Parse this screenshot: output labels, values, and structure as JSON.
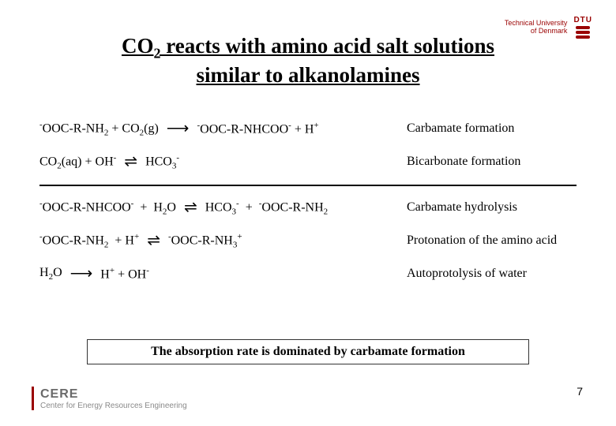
{
  "header": {
    "uni_line1": "Technical University",
    "uni_line2": "of Denmark",
    "dtu": "DTU"
  },
  "title": {
    "line1_pre": "CO",
    "line1_sub": "2",
    "line1_post": " reacts with amino acid salt solutions",
    "line2": "similar to alkanolamines"
  },
  "reactions": [
    {
      "lhs": "<sup>-</sup>OOC-R-NH<sub>2</sub> + CO<sub>2</sub>(g)",
      "arrow": "⟶",
      "rhs": "<sup>-</sup>OOC-R-NHCOO<sup>-</sup> + H<sup>+</sup>",
      "label": "Carbamate formation"
    },
    {
      "lhs": "CO<sub>2</sub>(aq) + OH<sup>-</sup>",
      "arrow": "⇌",
      "rhs": "HCO<sub>3</sub><sup>-</sup>",
      "label": "Bicarbonate formation"
    }
  ],
  "reactions2": [
    {
      "lhs": "<sup>-</sup>OOC-R-NHCOO<sup>-</sup> &nbsp;+&nbsp; H<sub>2</sub>O",
      "arrow": "⇌",
      "rhs": "HCO<sub>3</sub><sup>-</sup> &nbsp;+&nbsp; <sup>-</sup>OOC-R-NH<sub>2</sub>",
      "label": "Carbamate hydrolysis"
    },
    {
      "lhs": "<sup>-</sup>OOC-R-NH<sub>2</sub> &nbsp;+ H<sup>+</sup>",
      "arrow": "⇌",
      "rhs": "<sup>-</sup>OOC-R-NH<sub>3</sub><sup>+</sup>",
      "label": "Protonation of the amino acid"
    },
    {
      "lhs": "H<sub>2</sub>O",
      "arrow": "⟶",
      "rhs": "H<sup>+</sup> + OH<sup>-</sup>",
      "label": "Autoprotolysis of water"
    }
  ],
  "callout": "The  absorption rate is dominated by carbamate formation",
  "footer": {
    "cere": "CERE",
    "cere_full": "Center for Energy Resources Engineering"
  },
  "page": "7",
  "colors": {
    "brand": "#9a0000",
    "grey": "#7a7a7a"
  }
}
